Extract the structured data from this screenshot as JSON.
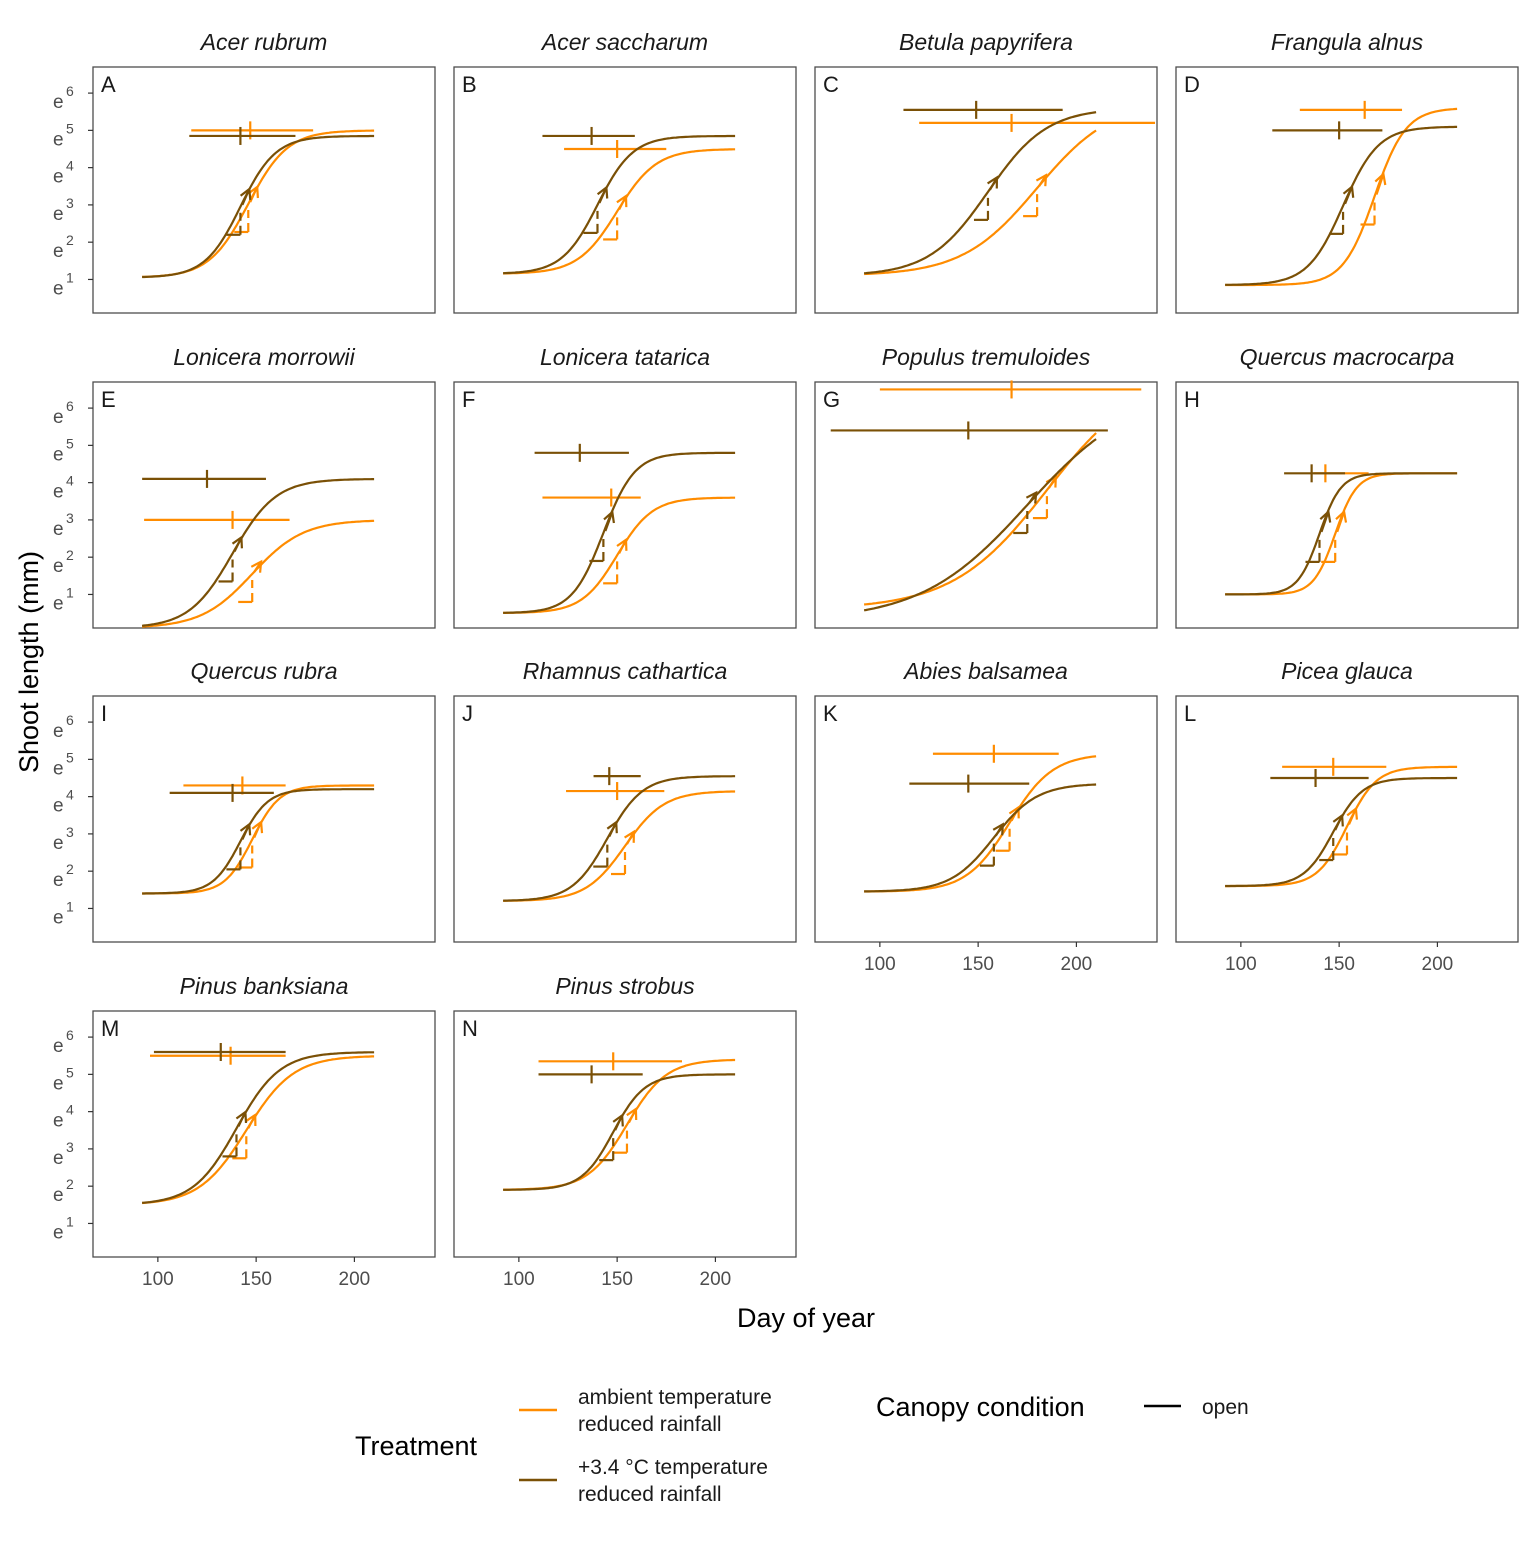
{
  "chart_data": {
    "type": "line",
    "xlabel": "Day of year",
    "ylabel": "Shoot length (mm)",
    "y_scale": "log",
    "y_ticks": [
      {
        "base": "e",
        "exp": "1",
        "value": 1
      },
      {
        "base": "e",
        "exp": "2",
        "value": 2
      },
      {
        "base": "e",
        "exp": "3",
        "value": 3
      },
      {
        "base": "e",
        "exp": "4",
        "value": 4
      },
      {
        "base": "e",
        "exp": "5",
        "value": 5
      },
      {
        "base": "e",
        "exp": "6",
        "value": 6
      }
    ],
    "ylim": [
      0.1,
      6.7
    ],
    "xlim": [
      67,
      241
    ],
    "x_ticks": [
      "100",
      "150",
      "200"
    ],
    "grid": false,
    "colors": {
      "ambient": "#ff8c00",
      "warm": "#7a5006",
      "frame": "#4d4d4d"
    },
    "legend": {
      "treatment_title": "Treatment",
      "treatment_items": [
        {
          "key": "ambient",
          "label_lines": [
            "ambient temperature",
            "reduced rainfall"
          ]
        },
        {
          "key": "warm",
          "label_lines": [
            "+3.4 °C temperature",
            "reduced rainfall"
          ]
        }
      ],
      "canopy_title": "Canopy condition",
      "canopy_items": [
        {
          "label": "open",
          "linetype": "solid"
        }
      ]
    },
    "facets": [
      {
        "tag": "A",
        "title": "Acer rubrum",
        "series": [
          {
            "treatment": "ambient",
            "lower": 1.05,
            "upper": 5.0,
            "x0": 146,
            "scale": 10,
            "x_start": 92,
            "x_end": 210,
            "bar": {
              "xmin": 117,
              "xmax": 179,
              "xmid": 147,
              "y": 5.0
            }
          },
          {
            "treatment": "warm",
            "lower": 1.05,
            "upper": 4.85,
            "x0": 142,
            "scale": 9,
            "x_start": 92,
            "x_end": 210,
            "bar": {
              "xmin": 116,
              "xmax": 170,
              "xmid": 142,
              "y": 4.85
            }
          }
        ]
      },
      {
        "tag": "B",
        "title": "Acer saccharum",
        "series": [
          {
            "treatment": "ambient",
            "lower": 1.15,
            "upper": 4.5,
            "x0": 150,
            "scale": 10,
            "x_start": 92,
            "x_end": 210,
            "bar": {
              "xmin": 123,
              "xmax": 175,
              "xmid": 150,
              "y": 4.5
            }
          },
          {
            "treatment": "warm",
            "lower": 1.15,
            "upper": 4.85,
            "x0": 140,
            "scale": 9,
            "x_start": 92,
            "x_end": 210,
            "bar": {
              "xmin": 112,
              "xmax": 159,
              "xmid": 137,
              "y": 4.85
            }
          }
        ]
      },
      {
        "tag": "C",
        "title": "Betula papyrifera",
        "series": [
          {
            "treatment": "ambient",
            "lower": 1.1,
            "upper": 5.8,
            "x0": 180,
            "scale": 19,
            "x_start": 92,
            "x_end": 210,
            "bar": {
              "xmin": 120,
              "xmax": 240,
              "xmid": 167,
              "y": 5.2
            }
          },
          {
            "treatment": "warm",
            "lower": 1.1,
            "upper": 5.6,
            "x0": 155,
            "scale": 15,
            "x_start": 92,
            "x_end": 210,
            "bar": {
              "xmin": 112,
              "xmax": 193,
              "xmid": 149,
              "y": 5.55
            }
          }
        ]
      },
      {
        "tag": "D",
        "title": "Frangula alnus",
        "series": [
          {
            "treatment": "ambient",
            "lower": 0.85,
            "upper": 5.6,
            "x0": 168,
            "scale": 8,
            "x_start": 92,
            "x_end": 210,
            "bar": {
              "xmin": 130,
              "xmax": 182,
              "xmid": 163,
              "y": 5.55
            }
          },
          {
            "treatment": "warm",
            "lower": 0.85,
            "upper": 5.1,
            "x0": 152,
            "scale": 9,
            "x_start": 92,
            "x_end": 210,
            "bar": {
              "xmin": 116,
              "xmax": 172,
              "xmid": 150,
              "y": 5.0
            }
          }
        ]
      },
      {
        "tag": "E",
        "title": "Lonicera morrowii",
        "series": [
          {
            "treatment": "ambient",
            "lower": 0.1,
            "upper": 3.0,
            "x0": 148,
            "scale": 13,
            "x_start": 92,
            "x_end": 210,
            "bar": {
              "xmin": 93,
              "xmax": 167,
              "xmid": 138,
              "y": 3.0
            }
          },
          {
            "treatment": "warm",
            "lower": 0.1,
            "upper": 4.1,
            "x0": 138,
            "scale": 11,
            "x_start": 92,
            "x_end": 210,
            "bar": {
              "xmin": 92,
              "xmax": 155,
              "xmid": 125,
              "y": 4.1
            }
          }
        ]
      },
      {
        "tag": "F",
        "title": "Lonicera tatarica",
        "series": [
          {
            "treatment": "ambient",
            "lower": 0.5,
            "upper": 3.6,
            "x0": 150,
            "scale": 9,
            "x_start": 92,
            "x_end": 210,
            "bar": {
              "xmin": 112,
              "xmax": 162,
              "xmid": 147,
              "y": 3.6
            }
          },
          {
            "treatment": "warm",
            "lower": 0.5,
            "upper": 4.8,
            "x0": 143,
            "scale": 8,
            "x_start": 92,
            "x_end": 210,
            "bar": {
              "xmin": 108,
              "xmax": 156,
              "xmid": 131,
              "y": 4.8
            }
          }
        ]
      },
      {
        "tag": "G",
        "title": "Populus tremuloides",
        "series": [
          {
            "treatment": "ambient",
            "lower": 0.6,
            "upper": 7.0,
            "x0": 185,
            "scale": 24,
            "x_start": 92,
            "x_end": 210,
            "bar": {
              "xmin": 100,
              "xmax": 233,
              "xmid": 167,
              "y": 6.5
            }
          },
          {
            "treatment": "warm",
            "lower": 0.3,
            "upper": 6.5,
            "x0": 175,
            "scale": 27,
            "x_start": 92,
            "x_end": 210,
            "bar": {
              "xmin": 75,
              "xmax": 216,
              "xmid": 145,
              "y": 5.4
            }
          }
        ]
      },
      {
        "tag": "H",
        "title": "Quercus macrocarpa",
        "series": [
          {
            "treatment": "ambient",
            "lower": 1.0,
            "upper": 4.25,
            "x0": 148,
            "scale": 5.5,
            "x_start": 92,
            "x_end": 210,
            "bar": {
              "xmin": 137,
              "xmax": 165,
              "xmid": 143,
              "y": 4.25
            }
          },
          {
            "treatment": "warm",
            "lower": 1.0,
            "upper": 4.25,
            "x0": 140,
            "scale": 5.5,
            "x_start": 92,
            "x_end": 210,
            "bar": {
              "xmin": 122,
              "xmax": 153,
              "xmid": 136,
              "y": 4.25
            }
          }
        ]
      },
      {
        "tag": "I",
        "title": "Quercus rubra",
        "series": [
          {
            "treatment": "ambient",
            "lower": 1.4,
            "upper": 4.3,
            "x0": 148,
            "scale": 7,
            "x_start": 92,
            "x_end": 210,
            "bar": {
              "xmin": 113,
              "xmax": 165,
              "xmid": 143,
              "y": 4.3
            }
          },
          {
            "treatment": "warm",
            "lower": 1.4,
            "upper": 4.2,
            "x0": 142,
            "scale": 7,
            "x_start": 92,
            "x_end": 210,
            "bar": {
              "xmin": 106,
              "xmax": 159,
              "xmid": 138,
              "y": 4.1
            }
          }
        ]
      },
      {
        "tag": "J",
        "title": "Rhamnus cathartica",
        "series": [
          {
            "treatment": "ambient",
            "lower": 1.2,
            "upper": 4.15,
            "x0": 154,
            "scale": 10,
            "x_start": 92,
            "x_end": 210,
            "bar": {
              "xmin": 124,
              "xmax": 174,
              "xmid": 150,
              "y": 4.15
            }
          },
          {
            "treatment": "warm",
            "lower": 1.2,
            "upper": 4.55,
            "x0": 145,
            "scale": 9,
            "x_start": 92,
            "x_end": 210,
            "bar": {
              "xmin": 138,
              "xmax": 162,
              "xmid": 146,
              "y": 4.55
            }
          }
        ]
      },
      {
        "tag": "K",
        "title": "Abies balsamea",
        "series": [
          {
            "treatment": "ambient",
            "lower": 1.45,
            "upper": 5.15,
            "x0": 166,
            "scale": 11,
            "x_start": 92,
            "x_end": 210,
            "bar": {
              "xmin": 127,
              "xmax": 191,
              "xmid": 158,
              "y": 5.15
            }
          },
          {
            "treatment": "warm",
            "lower": 1.45,
            "upper": 4.35,
            "x0": 158,
            "scale": 11,
            "x_start": 92,
            "x_end": 210,
            "bar": {
              "xmin": 115,
              "xmax": 176,
              "xmid": 145,
              "y": 4.35
            }
          }
        ]
      },
      {
        "tag": "L",
        "title": "Picea glauca",
        "series": [
          {
            "treatment": "ambient",
            "lower": 1.6,
            "upper": 4.8,
            "x0": 154,
            "scale": 7.5,
            "x_start": 92,
            "x_end": 210,
            "bar": {
              "xmin": 121,
              "xmax": 174,
              "xmid": 147,
              "y": 4.8
            }
          },
          {
            "treatment": "warm",
            "lower": 1.6,
            "upper": 4.5,
            "x0": 147,
            "scale": 7.5,
            "x_start": 92,
            "x_end": 210,
            "bar": {
              "xmin": 115,
              "xmax": 165,
              "xmid": 138,
              "y": 4.5
            }
          }
        ]
      },
      {
        "tag": "M",
        "title": "Pinus banksiana",
        "series": [
          {
            "treatment": "ambient",
            "lower": 1.5,
            "upper": 5.5,
            "x0": 145,
            "scale": 12,
            "x_start": 92,
            "x_end": 210,
            "bar": {
              "xmin": 96,
              "xmax": 165,
              "xmid": 137,
              "y": 5.5
            }
          },
          {
            "treatment": "warm",
            "lower": 1.5,
            "upper": 5.6,
            "x0": 140,
            "scale": 11,
            "x_start": 92,
            "x_end": 210,
            "bar": {
              "xmin": 98,
              "xmax": 165,
              "xmid": 132,
              "y": 5.6
            }
          }
        ]
      },
      {
        "tag": "N",
        "title": "Pinus strobus",
        "series": [
          {
            "treatment": "ambient",
            "lower": 1.9,
            "upper": 5.4,
            "x0": 155,
            "scale": 10,
            "x_start": 92,
            "x_end": 210,
            "bar": {
              "xmin": 110,
              "xmax": 183,
              "xmid": 148,
              "y": 5.35
            }
          },
          {
            "treatment": "warm",
            "lower": 1.9,
            "upper": 5.0,
            "x0": 148,
            "scale": 8,
            "x_start": 92,
            "x_end": 210,
            "bar": {
              "xmin": 110,
              "xmax": 163,
              "xmid": 137,
              "y": 5.0
            }
          }
        ]
      }
    ]
  }
}
